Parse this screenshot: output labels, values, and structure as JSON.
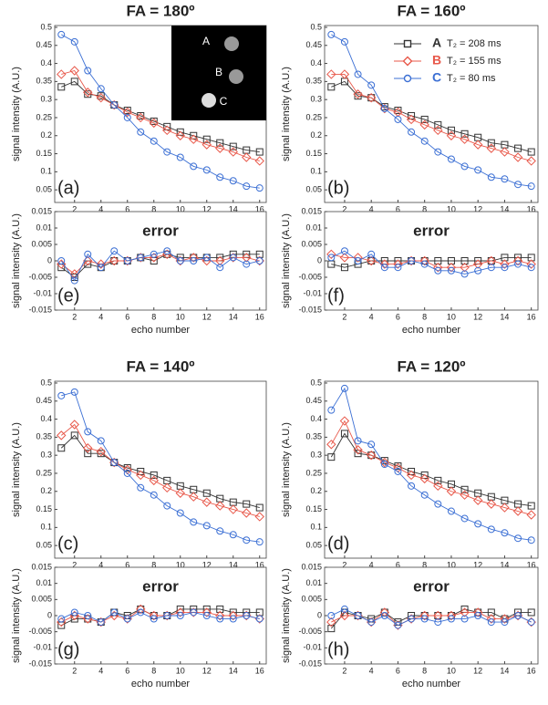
{
  "chart_data": [
    {
      "type": "line",
      "title": "FA = 180º",
      "panel_label": "(a)",
      "y_label": "signal intensity (A.U.)",
      "x": [
        1,
        2,
        3,
        4,
        5,
        6,
        7,
        8,
        9,
        10,
        11,
        12,
        13,
        14,
        15,
        16
      ],
      "xlim": [
        0.5,
        16.5
      ],
      "xticks": [
        2,
        4,
        6,
        8,
        10,
        12,
        14,
        16
      ],
      "ylim": [
        0.015,
        0.505
      ],
      "yticks": [
        0.05,
        0.1,
        0.15,
        0.2,
        0.25,
        0.3,
        0.35,
        0.4,
        0.45,
        0.5
      ],
      "inset": {
        "labels": [
          "A",
          "B",
          "C"
        ]
      },
      "series": [
        {
          "color": "#333333",
          "marker": "square",
          "values": [
            0.335,
            0.35,
            0.315,
            0.31,
            0.285,
            0.27,
            0.255,
            0.24,
            0.225,
            0.21,
            0.2,
            0.19,
            0.18,
            0.17,
            0.16,
            0.155
          ]
        },
        {
          "color": "#e8584a",
          "marker": "diamond",
          "values": [
            0.37,
            0.38,
            0.32,
            0.305,
            0.285,
            0.265,
            0.25,
            0.235,
            0.215,
            0.2,
            0.19,
            0.175,
            0.165,
            0.155,
            0.14,
            0.13
          ]
        },
        {
          "color": "#3b6fd4",
          "marker": "circle",
          "values": [
            0.48,
            0.46,
            0.38,
            0.33,
            0.285,
            0.25,
            0.21,
            0.185,
            0.155,
            0.14,
            0.115,
            0.105,
            0.085,
            0.075,
            0.06,
            0.055
          ]
        }
      ]
    },
    {
      "type": "line",
      "title": "FA = 160º",
      "panel_label": "(b)",
      "y_label": "signal intensity (A.U.)",
      "x": [
        1,
        2,
        3,
        4,
        5,
        6,
        7,
        8,
        9,
        10,
        11,
        12,
        13,
        14,
        15,
        16
      ],
      "xlim": [
        0.5,
        16.5
      ],
      "xticks": [
        2,
        4,
        6,
        8,
        10,
        12,
        14,
        16
      ],
      "ylim": [
        0.015,
        0.505
      ],
      "yticks": [
        0.05,
        0.1,
        0.15,
        0.2,
        0.25,
        0.3,
        0.35,
        0.4,
        0.45,
        0.5
      ],
      "legend": "upper right",
      "series": [
        {
          "name": "A",
          "label": "T₂ = 208 ms",
          "color": "#333333",
          "marker": "square",
          "values": [
            0.335,
            0.35,
            0.31,
            0.305,
            0.28,
            0.27,
            0.255,
            0.245,
            0.23,
            0.215,
            0.205,
            0.195,
            0.18,
            0.175,
            0.165,
            0.155
          ]
        },
        {
          "name": "B",
          "label": "T₂ = 155 ms",
          "color": "#e8584a",
          "marker": "diamond",
          "values": [
            0.37,
            0.37,
            0.315,
            0.305,
            0.275,
            0.265,
            0.245,
            0.23,
            0.215,
            0.2,
            0.19,
            0.175,
            0.165,
            0.155,
            0.14,
            0.13
          ]
        },
        {
          "name": "C",
          "label": "T₂ = 80 ms",
          "color": "#3b6fd4",
          "marker": "circle",
          "values": [
            0.48,
            0.46,
            0.37,
            0.34,
            0.275,
            0.245,
            0.21,
            0.185,
            0.155,
            0.135,
            0.115,
            0.105,
            0.085,
            0.08,
            0.065,
            0.06
          ]
        }
      ]
    },
    {
      "type": "line",
      "title": "FA = 140º",
      "panel_label": "(c)",
      "y_label": "signal intensity (A.U.)",
      "x": [
        1,
        2,
        3,
        4,
        5,
        6,
        7,
        8,
        9,
        10,
        11,
        12,
        13,
        14,
        15,
        16
      ],
      "xlim": [
        0.5,
        16.5
      ],
      "xticks": [
        2,
        4,
        6,
        8,
        10,
        12,
        14,
        16
      ],
      "ylim": [
        0.015,
        0.505
      ],
      "yticks": [
        0.05,
        0.1,
        0.15,
        0.2,
        0.25,
        0.3,
        0.35,
        0.4,
        0.45,
        0.5
      ],
      "series": [
        {
          "color": "#333333",
          "marker": "square",
          "values": [
            0.32,
            0.355,
            0.305,
            0.305,
            0.28,
            0.265,
            0.255,
            0.245,
            0.23,
            0.215,
            0.205,
            0.195,
            0.18,
            0.17,
            0.165,
            0.155
          ]
        },
        {
          "color": "#e8584a",
          "marker": "diamond",
          "values": [
            0.355,
            0.385,
            0.32,
            0.31,
            0.28,
            0.26,
            0.245,
            0.23,
            0.21,
            0.195,
            0.185,
            0.17,
            0.16,
            0.15,
            0.14,
            0.13
          ]
        },
        {
          "color": "#3b6fd4",
          "marker": "circle",
          "values": [
            0.465,
            0.475,
            0.365,
            0.34,
            0.28,
            0.25,
            0.21,
            0.19,
            0.16,
            0.14,
            0.115,
            0.105,
            0.09,
            0.08,
            0.065,
            0.06
          ]
        }
      ]
    },
    {
      "type": "line",
      "title": "FA = 120º",
      "panel_label": "(d)",
      "y_label": "signal intensity (A.U.)",
      "x": [
        1,
        2,
        3,
        4,
        5,
        6,
        7,
        8,
        9,
        10,
        11,
        12,
        13,
        14,
        15,
        16
      ],
      "xlim": [
        0.5,
        16.5
      ],
      "xticks": [
        2,
        4,
        6,
        8,
        10,
        12,
        14,
        16
      ],
      "ylim": [
        0.015,
        0.505
      ],
      "yticks": [
        0.05,
        0.1,
        0.15,
        0.2,
        0.25,
        0.3,
        0.35,
        0.4,
        0.45,
        0.5
      ],
      "series": [
        {
          "color": "#333333",
          "marker": "square",
          "values": [
            0.295,
            0.36,
            0.305,
            0.3,
            0.285,
            0.27,
            0.255,
            0.245,
            0.23,
            0.22,
            0.205,
            0.195,
            0.185,
            0.175,
            0.165,
            0.16
          ]
        },
        {
          "color": "#e8584a",
          "marker": "diamond",
          "values": [
            0.33,
            0.395,
            0.315,
            0.3,
            0.28,
            0.265,
            0.245,
            0.235,
            0.215,
            0.2,
            0.19,
            0.175,
            0.165,
            0.155,
            0.145,
            0.135
          ]
        },
        {
          "color": "#3b6fd4",
          "marker": "circle",
          "values": [
            0.425,
            0.485,
            0.34,
            0.33,
            0.275,
            0.255,
            0.215,
            0.19,
            0.165,
            0.145,
            0.125,
            0.11,
            0.095,
            0.085,
            0.07,
            0.065
          ]
        }
      ]
    },
    {
      "type": "line",
      "title": "error",
      "panel_label": "(e)",
      "y_label": "signal intensity (A.U.)",
      "x_label": "echo number",
      "x": [
        1,
        2,
        3,
        4,
        5,
        6,
        7,
        8,
        9,
        10,
        11,
        12,
        13,
        14,
        15,
        16
      ],
      "xlim": [
        0.5,
        16.5
      ],
      "xticks": [
        2,
        4,
        6,
        8,
        10,
        12,
        14,
        16
      ],
      "ylim": [
        -0.015,
        0.015
      ],
      "yticks": [
        -0.015,
        -0.01,
        -0.005,
        0,
        0.005,
        0.01,
        0.015
      ],
      "series": [
        {
          "color": "#333333",
          "marker": "square",
          "values": [
            -0.002,
            -0.005,
            -0.001,
            -0.002,
            0,
            0,
            0.001,
            0,
            0.002,
            0.001,
            0.001,
            0.001,
            0.001,
            0.002,
            0.002,
            0.002
          ]
        },
        {
          "color": "#e8584a",
          "marker": "diamond",
          "values": [
            -0.001,
            -0.004,
            0,
            -0.001,
            0,
            0,
            0.001,
            0.001,
            0.002,
            0,
            0.001,
            0,
            0,
            0.001,
            0.001,
            0
          ]
        },
        {
          "color": "#3b6fd4",
          "marker": "circle",
          "values": [
            0,
            -0.006,
            0.002,
            -0.002,
            0.003,
            0,
            0.001,
            0.002,
            0.003,
            0,
            0,
            0.001,
            -0.002,
            0.001,
            -0.001,
            0
          ]
        }
      ]
    },
    {
      "type": "line",
      "title": "error",
      "panel_label": "(f)",
      "y_label": "signal intensity (A.U.)",
      "x_label": "echo number",
      "x": [
        1,
        2,
        3,
        4,
        5,
        6,
        7,
        8,
        9,
        10,
        11,
        12,
        13,
        14,
        15,
        16
      ],
      "xlim": [
        0.5,
        16.5
      ],
      "xticks": [
        2,
        4,
        6,
        8,
        10,
        12,
        14,
        16
      ],
      "ylim": [
        -0.015,
        0.015
      ],
      "yticks": [
        -0.015,
        -0.01,
        -0.005,
        0,
        0.005,
        0.01,
        0.015
      ],
      "series": [
        {
          "color": "#333333",
          "marker": "square",
          "values": [
            -0.001,
            -0.002,
            -0.001,
            0,
            0,
            0,
            0,
            0,
            0,
            0,
            0,
            0,
            0,
            0.001,
            0.001,
            0.001
          ]
        },
        {
          "color": "#e8584a",
          "marker": "diamond",
          "values": [
            0.002,
            0.001,
            0.001,
            0,
            -0.001,
            -0.001,
            0,
            0,
            -0.002,
            -0.002,
            -0.002,
            -0.001,
            0,
            -0.001,
            0,
            -0.001
          ]
        },
        {
          "color": "#3b6fd4",
          "marker": "circle",
          "values": [
            0.001,
            0.003,
            0,
            0.002,
            -0.002,
            -0.002,
            0,
            -0.001,
            -0.003,
            -0.003,
            -0.004,
            -0.003,
            -0.002,
            -0.002,
            -0.001,
            -0.002
          ]
        }
      ]
    },
    {
      "type": "line",
      "title": "error",
      "panel_label": "(g)",
      "y_label": "signal intensity (A.U.)",
      "x_label": "echo number",
      "x": [
        1,
        2,
        3,
        4,
        5,
        6,
        7,
        8,
        9,
        10,
        11,
        12,
        13,
        14,
        15,
        16
      ],
      "xlim": [
        0.5,
        16.5
      ],
      "xticks": [
        2,
        4,
        6,
        8,
        10,
        12,
        14,
        16
      ],
      "ylim": [
        -0.015,
        0.015
      ],
      "yticks": [
        -0.015,
        -0.01,
        -0.005,
        0,
        0.005,
        0.01,
        0.015
      ],
      "series": [
        {
          "color": "#333333",
          "marker": "square",
          "values": [
            -0.003,
            -0.001,
            -0.001,
            -0.002,
            0.001,
            0,
            0.002,
            0,
            0,
            0.002,
            0.002,
            0.002,
            0.002,
            0.001,
            0.001,
            0.001
          ]
        },
        {
          "color": "#e8584a",
          "marker": "diamond",
          "values": [
            -0.002,
            0,
            -0.001,
            -0.002,
            0,
            -0.001,
            0.002,
            0,
            0,
            0.001,
            0.001,
            0.001,
            0,
            0,
            0,
            -0.001
          ]
        },
        {
          "color": "#3b6fd4",
          "marker": "circle",
          "values": [
            -0.001,
            0.001,
            0,
            -0.002,
            0.001,
            -0.001,
            0.001,
            -0.001,
            0,
            0,
            0.001,
            0,
            -0.001,
            -0.001,
            0,
            -0.001
          ]
        }
      ]
    },
    {
      "type": "line",
      "title": "error",
      "panel_label": "(h)",
      "y_label": "signal intensity (A.U.)",
      "x_label": "echo number",
      "x": [
        1,
        2,
        3,
        4,
        5,
        6,
        7,
        8,
        9,
        10,
        11,
        12,
        13,
        14,
        15,
        16
      ],
      "xlim": [
        0.5,
        16.5
      ],
      "xticks": [
        2,
        4,
        6,
        8,
        10,
        12,
        14,
        16
      ],
      "ylim": [
        -0.015,
        0.015
      ],
      "yticks": [
        -0.015,
        -0.01,
        -0.005,
        0,
        0.005,
        0.01,
        0.015
      ],
      "series": [
        {
          "color": "#333333",
          "marker": "square",
          "values": [
            -0.004,
            0.001,
            0,
            -0.001,
            0.001,
            -0.002,
            0,
            0,
            0,
            0,
            0.002,
            0.001,
            0.001,
            -0.001,
            0.001,
            0.001
          ]
        },
        {
          "color": "#e8584a",
          "marker": "diamond",
          "values": [
            -0.002,
            0,
            0,
            -0.002,
            0.001,
            -0.003,
            -0.001,
            0,
            0,
            0,
            0.001,
            0.001,
            -0.001,
            -0.001,
            0,
            -0.002
          ]
        },
        {
          "color": "#3b6fd4",
          "marker": "circle",
          "values": [
            0,
            0.002,
            0,
            -0.002,
            0,
            -0.003,
            -0.001,
            -0.001,
            -0.002,
            -0.001,
            -0.001,
            0,
            -0.002,
            -0.002,
            0,
            -0.002
          ]
        }
      ]
    }
  ]
}
